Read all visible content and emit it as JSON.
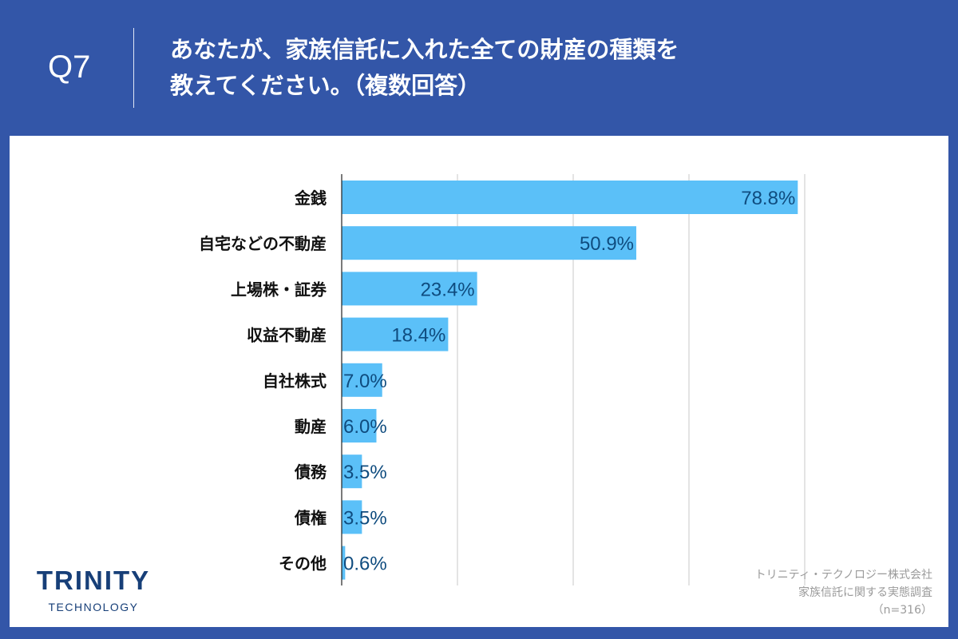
{
  "header": {
    "question_no": "Q7",
    "title_line1": "あなたが、家族信託に入れた全ての財産の種類を",
    "title_line2": "教えてください。（複数回答）"
  },
  "logo": {
    "name": "TRINITY",
    "sub": "TECHNOLOGY"
  },
  "source": {
    "line1": "トリニティ・テクノロジー株式会社",
    "line2": "家族信託に関する実態調査",
    "line3": "（n=316）"
  },
  "colors": {
    "background": "#3356a8",
    "bar": "#5bc0f8",
    "value_label": "#0f4c7f"
  },
  "chart_data": {
    "type": "bar",
    "orientation": "horizontal",
    "categories": [
      "金銭",
      "自宅などの不動産",
      "上場株・証券",
      "収益不動産",
      "自社株式",
      "動産",
      "債務",
      "債権",
      "その他"
    ],
    "values": [
      78.8,
      50.9,
      23.4,
      18.4,
      7.0,
      6.0,
      3.5,
      3.5,
      0.6
    ],
    "value_labels": [
      "78.8%",
      "50.9%",
      "23.4%",
      "18.4%",
      "7.0%",
      "6.0%",
      "3.5%",
      "3.5%",
      "0.6%"
    ],
    "unit": "%",
    "xlim": [
      0,
      80
    ],
    "gridlines": [
      0,
      20,
      40,
      60,
      80
    ],
    "grid": true
  }
}
